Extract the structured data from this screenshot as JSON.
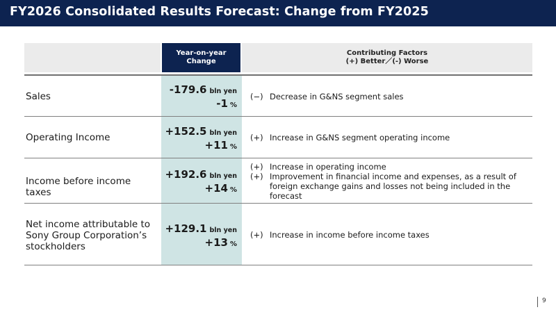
{
  "title": "FY2026 Consolidated Results Forecast: Change from FY2025",
  "header": {
    "change_line1": "Year-on-year",
    "change_line2": "Change",
    "factors_line1": "Contributing Factors",
    "factors_line2": "(+) Better／(-) Worse"
  },
  "rows": [
    {
      "label": "Sales",
      "value": "-179.6",
      "unit": "bln yen",
      "pct": "-1",
      "pct_unit": "%",
      "factors": [
        {
          "sign": "(−)",
          "text": "Decrease in G&NS segment sales"
        }
      ]
    },
    {
      "label": "Operating Income",
      "value": "+152.5",
      "unit": "bln yen",
      "pct": "+11",
      "pct_unit": "%",
      "factors": [
        {
          "sign": "(+)",
          "text": "Increase in G&NS segment operating income"
        }
      ]
    },
    {
      "label": "Income before income taxes",
      "value": "+192.6",
      "unit": "bln yen",
      "pct": "+14",
      "pct_unit": "%",
      "factors": [
        {
          "sign": "(+)",
          "text": "Increase in operating income"
        },
        {
          "sign": "(+)",
          "text": "Improvement in financial income and expenses, as a result of foreign exchange gains and losses not being included in the forecast"
        }
      ]
    },
    {
      "label": "Net income attributable to Sony Group Corporation’s stockholders",
      "value": "+129.1",
      "unit": "bln yen",
      "pct": "+13",
      "pct_unit": "%",
      "factors": [
        {
          "sign": "(+)",
          "text": "Increase in income before income taxes"
        }
      ]
    }
  ],
  "page_number": "9"
}
